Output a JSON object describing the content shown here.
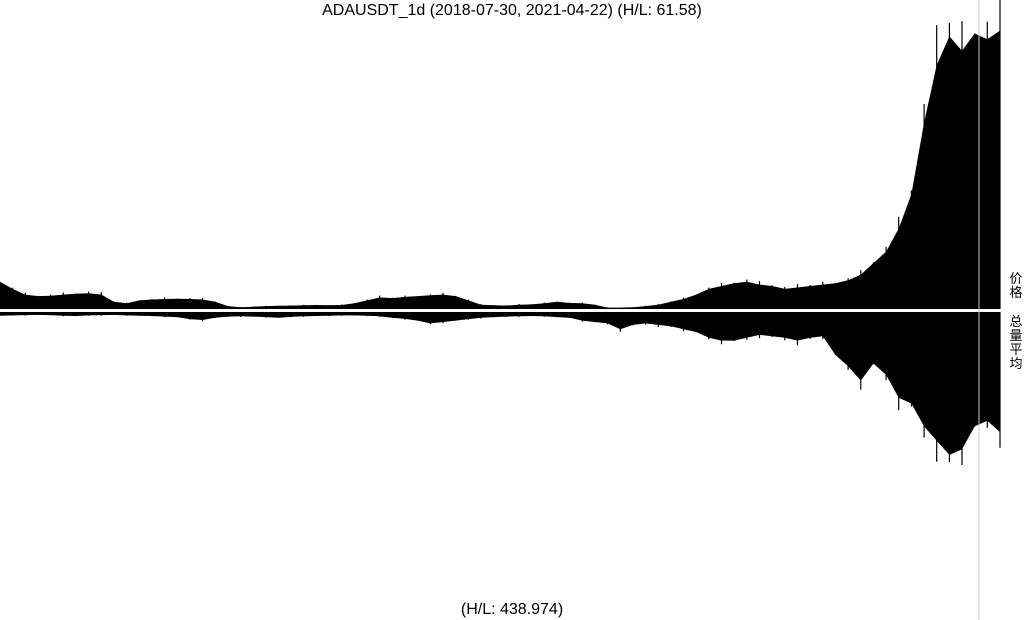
{
  "title": "ADAUSDT_1d (2018-07-30, 2021-04-22) (H/L: 61.58)",
  "footer": "(H/L: 438.974)",
  "labels": {
    "price": "价格",
    "volume": "总量平均"
  },
  "colors": {
    "fill": "#000000",
    "background": "#ffffff",
    "separator": "#c8c8c8"
  },
  "chart_data": {
    "type": "area",
    "x_range": [
      "2018-07-30",
      "2021-04-22"
    ],
    "panels": [
      {
        "name": "价格",
        "hl_ratio": 61.58,
        "direction": "up",
        "values": [
          0.095,
          0.07,
          0.05,
          0.045,
          0.046,
          0.05,
          0.053,
          0.055,
          0.05,
          0.025,
          0.02,
          0.03,
          0.033,
          0.035,
          0.036,
          0.035,
          0.033,
          0.025,
          0.01,
          0.006,
          0.008,
          0.01,
          0.011,
          0.012,
          0.013,
          0.014,
          0.013,
          0.014,
          0.02,
          0.03,
          0.04,
          0.038,
          0.042,
          0.045,
          0.048,
          0.05,
          0.045,
          0.03,
          0.015,
          0.013,
          0.012,
          0.015,
          0.016,
          0.02,
          0.025,
          0.021,
          0.02,
          0.015,
          0.005,
          0.005,
          0.006,
          0.01,
          0.015,
          0.025,
          0.035,
          0.05,
          0.07,
          0.08,
          0.09,
          0.095,
          0.085,
          0.08,
          0.07,
          0.075,
          0.08,
          0.085,
          0.09,
          0.1,
          0.12,
          0.16,
          0.2,
          0.28,
          0.4,
          0.65,
          0.85,
          0.95,
          0.9,
          0.96,
          0.94,
          0.97
        ]
      },
      {
        "name": "总量平均",
        "hl_ratio": 438.974,
        "direction": "down",
        "values": [
          0.013,
          0.012,
          0.011,
          0.01,
          0.011,
          0.013,
          0.014,
          0.012,
          0.011,
          0.01,
          0.012,
          0.013,
          0.014,
          0.016,
          0.018,
          0.025,
          0.028,
          0.02,
          0.016,
          0.015,
          0.016,
          0.018,
          0.02,
          0.017,
          0.015,
          0.014,
          0.013,
          0.012,
          0.012,
          0.013,
          0.015,
          0.02,
          0.024,
          0.03,
          0.04,
          0.035,
          0.03,
          0.025,
          0.02,
          0.018,
          0.016,
          0.015,
          0.014,
          0.015,
          0.018,
          0.02,
          0.03,
          0.035,
          0.04,
          0.06,
          0.045,
          0.04,
          0.045,
          0.05,
          0.06,
          0.07,
          0.09,
          0.1,
          0.1,
          0.09,
          0.08,
          0.085,
          0.09,
          0.1,
          0.09,
          0.085,
          0.15,
          0.19,
          0.24,
          0.18,
          0.22,
          0.3,
          0.32,
          0.4,
          0.45,
          0.5,
          0.48,
          0.4,
          0.38,
          0.42
        ]
      }
    ]
  }
}
